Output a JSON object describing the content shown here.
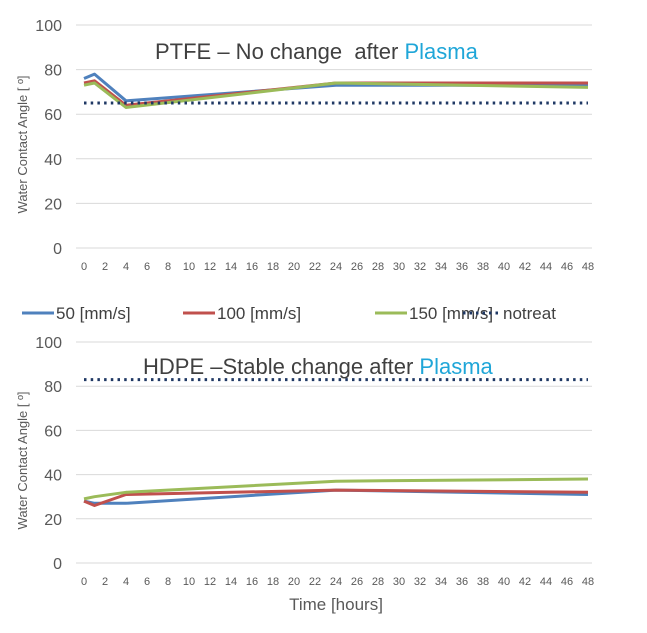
{
  "chart_data": [
    {
      "type": "line",
      "title": "PTFE – No change  after Plasma",
      "title_parts": [
        {
          "text": "PTFE – No change  after ",
          "color": "#404040"
        },
        {
          "text": "Plasma",
          "color": "#1fa6d8"
        }
      ],
      "xlabel": "",
      "ylabel": "Water Contact Angle [ º]",
      "ylim": [
        0,
        100
      ],
      "yticks": [
        0,
        20,
        40,
        60,
        80,
        100
      ],
      "xlim": [
        0,
        48
      ],
      "xticks": [
        0,
        2,
        4,
        6,
        8,
        10,
        12,
        14,
        16,
        18,
        20,
        22,
        24,
        26,
        28,
        30,
        32,
        34,
        36,
        38,
        40,
        42,
        44,
        46,
        48
      ],
      "grid": true,
      "x": [
        0,
        1,
        4,
        24,
        48
      ],
      "series": [
        {
          "name": "50 [mm/s]",
          "color": "#4f81bd",
          "style": "solid",
          "values": [
            76,
            78,
            66,
            73,
            73
          ]
        },
        {
          "name": "100 [mm/s]",
          "color": "#c0504d",
          "style": "solid",
          "values": [
            74,
            75,
            64,
            74,
            74
          ]
        },
        {
          "name": "150 [mm/s]",
          "color": "#9bbb59",
          "style": "solid",
          "values": [
            73,
            74,
            63,
            74,
            72
          ]
        },
        {
          "name": "notreat",
          "color": "#1f3864",
          "style": "dotted",
          "values": [
            65,
            65,
            65,
            65,
            65
          ]
        }
      ]
    },
    {
      "type": "line",
      "title": "HDPE –Stable change after Plasma",
      "title_parts": [
        {
          "text": "HDPE –Stable change after ",
          "color": "#404040"
        },
        {
          "text": "Plasma",
          "color": "#1fa6d8"
        }
      ],
      "xlabel": "Time [hours]",
      "ylabel": "Water Contact Angle [ º]",
      "ylim": [
        0,
        100
      ],
      "yticks": [
        0,
        20,
        40,
        60,
        80,
        100
      ],
      "xlim": [
        0,
        48
      ],
      "xticks": [
        0,
        2,
        4,
        6,
        8,
        10,
        12,
        14,
        16,
        18,
        20,
        22,
        24,
        26,
        28,
        30,
        32,
        34,
        36,
        38,
        40,
        42,
        44,
        46,
        48
      ],
      "grid": true,
      "x": [
        0,
        1,
        4,
        24,
        48
      ],
      "series": [
        {
          "name": "50 [mm/s]",
          "color": "#4f81bd",
          "style": "solid",
          "values": [
            28,
            27,
            27,
            33,
            31
          ]
        },
        {
          "name": "100 [mm/s]",
          "color": "#c0504d",
          "style": "solid",
          "values": [
            28,
            26,
            31,
            33,
            32
          ]
        },
        {
          "name": "150 [mm/s]",
          "color": "#9bbb59",
          "style": "solid",
          "values": [
            29,
            30,
            32,
            37,
            38
          ]
        },
        {
          "name": "notreat",
          "color": "#1f3864",
          "style": "dotted",
          "values": [
            83,
            83,
            83,
            83,
            83
          ]
        }
      ]
    }
  ],
  "legend": {
    "placement": "between-charts",
    "items": [
      {
        "label": "50 [mm/s]",
        "color": "#4f81bd",
        "style": "solid"
      },
      {
        "label": "100 [mm/s]",
        "color": "#c0504d",
        "style": "solid"
      },
      {
        "label": "150 [mm/s]",
        "color": "#9bbb59",
        "style": "solid"
      },
      {
        "label": "notreat",
        "color": "#1f3864",
        "style": "dotted"
      }
    ]
  }
}
